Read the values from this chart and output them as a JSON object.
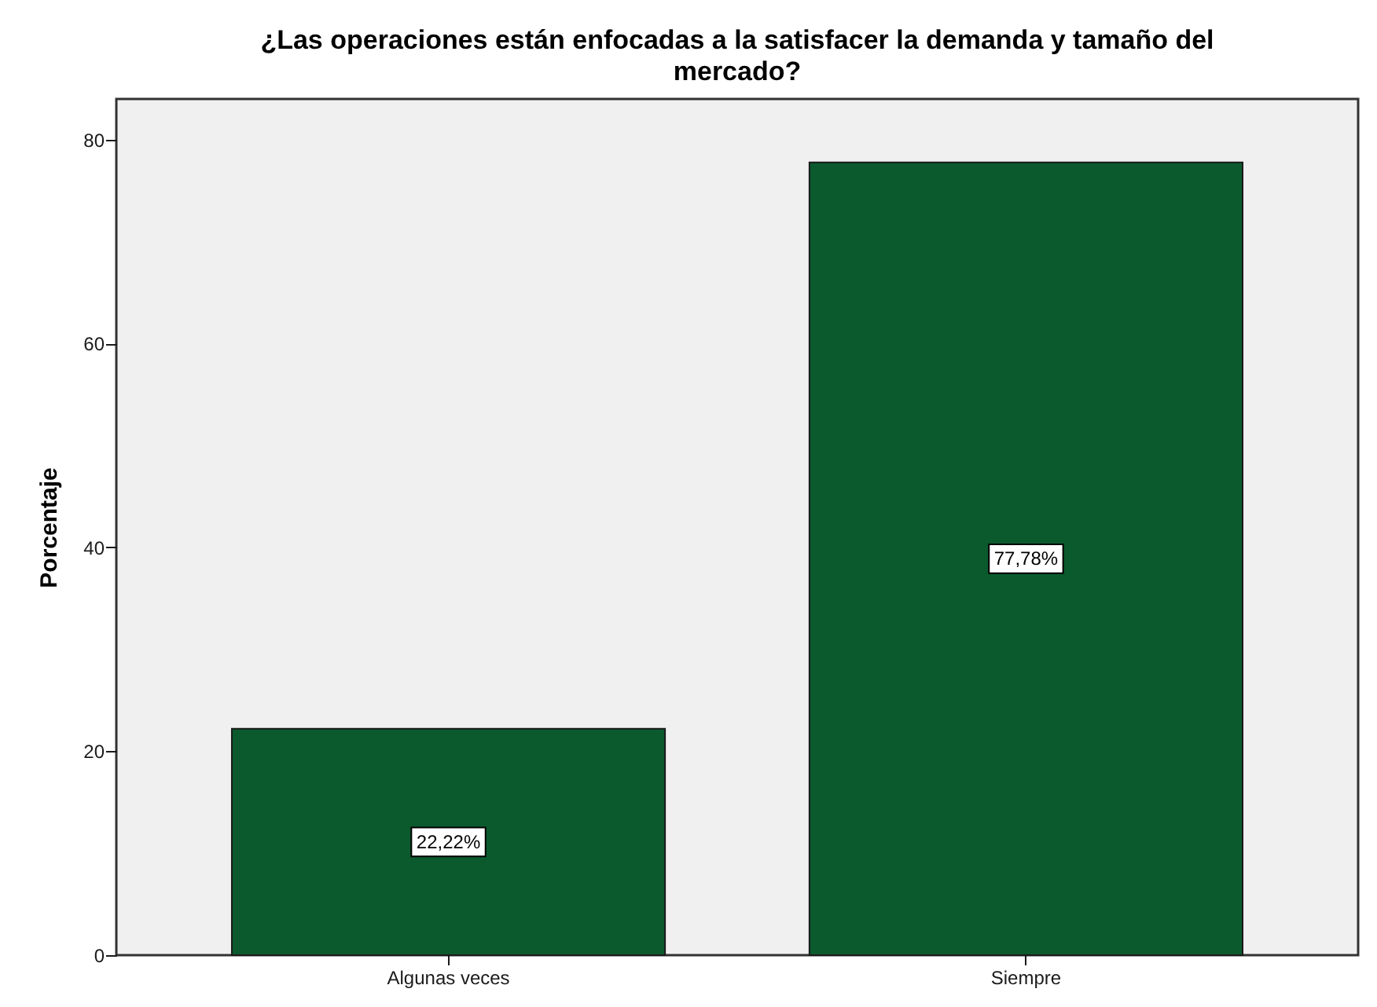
{
  "chart_data": {
    "type": "bar",
    "title": "¿Las operaciones están enfocadas a la satisfacer la demanda y tamaño del mercado?",
    "ylabel": "Porcentaje",
    "categories": [
      "Algunas veces",
      "Siempre"
    ],
    "values": [
      22.22,
      77.78
    ],
    "color": "#0b5a2e",
    "value_labels": [
      "22,22%",
      "77,78%"
    ],
    "ylim": [
      0,
      84
    ],
    "yticks": [
      0,
      20,
      40,
      60,
      80
    ]
  }
}
